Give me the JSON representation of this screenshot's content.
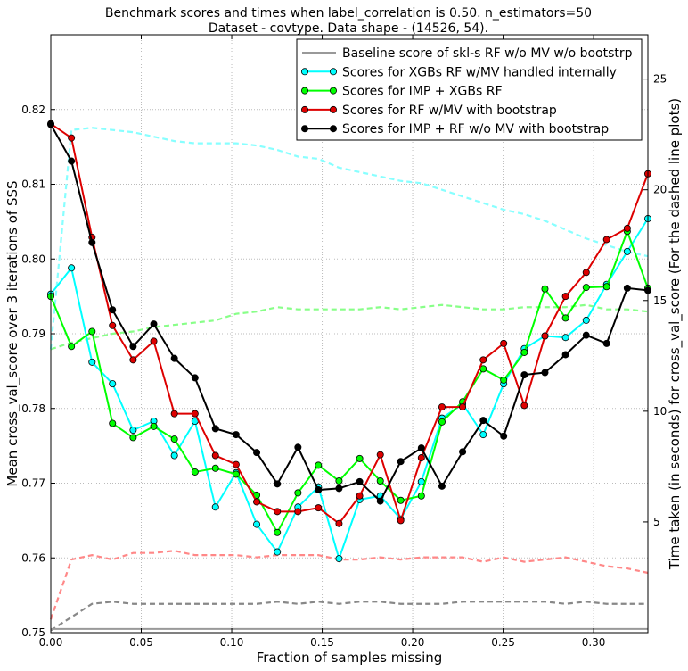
{
  "chart_data": {
    "type": "line",
    "title": "Benchmark scores and times when label_correlation is 0.50. n_estimators=50",
    "subtitle": "Dataset - covtype. Data shape - (14526, 54).",
    "xlabel": "Fraction of samples missing",
    "ylabel": "Mean cross_val_score over 3 iterations of SSS",
    "y2label": "Time taken (in seconds) for cross_val_score (For the dashed line plots)",
    "xlim": [
      0,
      0.33
    ],
    "ylim": [
      0.75,
      0.83
    ],
    "y2lim": [
      0,
      27
    ],
    "x_ticks": [
      "0.00",
      "0.05",
      "0.10",
      "0.15",
      "0.20",
      "0.25",
      "0.30"
    ],
    "y_ticks": [
      "0.75",
      "0.76",
      "0.77",
      "0.78",
      "0.79",
      "0.80",
      "0.81",
      "0.82"
    ],
    "y2_ticks": [
      "5",
      "10",
      "15",
      "20",
      "25"
    ],
    "grid": true,
    "legend_position": "top-right",
    "x": [
      0.0,
      0.0114,
      0.0228,
      0.0341,
      0.0455,
      0.0569,
      0.0683,
      0.0797,
      0.091,
      0.1024,
      0.1138,
      0.1252,
      0.1366,
      0.1479,
      0.1593,
      0.1707,
      0.1821,
      0.1934,
      0.2048,
      0.2162,
      0.2276,
      0.239,
      0.2503,
      0.2617,
      0.2731,
      0.2845,
      0.2959,
      0.3072,
      0.3186,
      0.33
    ],
    "series": [
      {
        "name": "Baseline score of skl-s RF w/o MV w/o bootstrp",
        "color": "#999999",
        "marker": "none",
        "values": [
          0.7505,
          0.7505,
          0.7505,
          0.7505,
          0.7505,
          0.7505,
          0.7505,
          0.7505,
          0.7505,
          0.7505,
          0.7505,
          0.7505,
          0.7505,
          0.7505,
          0.7505,
          0.7505,
          0.7505,
          0.7505,
          0.7505,
          0.7505,
          0.7505,
          0.7505,
          0.7505,
          0.7505,
          0.7505,
          0.7505,
          0.7505,
          0.7505,
          0.7505,
          0.7505
        ]
      },
      {
        "name": "Scores for XGBs RF w/MV handled internally",
        "color": "#00ffff",
        "marker": "circle",
        "values": [
          0.7953,
          0.7988,
          0.7862,
          0.7833,
          0.7771,
          0.7783,
          0.7737,
          0.7783,
          0.7668,
          0.7714,
          0.7645,
          0.7608,
          0.7668,
          0.7695,
          0.7599,
          0.7678,
          0.7683,
          0.7652,
          0.7702,
          0.7787,
          0.7806,
          0.7765,
          0.7833,
          0.788,
          0.7897,
          0.7895,
          0.7918,
          0.7966,
          0.801,
          0.8054
        ]
      },
      {
        "name": "Scores for IMP + XGBs RF",
        "color": "#00ff00",
        "marker": "circle",
        "values": [
          0.795,
          0.7883,
          0.7903,
          0.778,
          0.7761,
          0.7776,
          0.7759,
          0.7715,
          0.772,
          0.7712,
          0.7684,
          0.7634,
          0.7687,
          0.7724,
          0.7703,
          0.7733,
          0.7703,
          0.7677,
          0.7683,
          0.7782,
          0.7809,
          0.7853,
          0.7838,
          0.7875,
          0.796,
          0.7921,
          0.7962,
          0.7963,
          0.8037,
          0.7961
        ]
      },
      {
        "name": "Scores for RF w/MV with bootstrap",
        "color": "#dd0000",
        "marker": "circle",
        "values": [
          0.8181,
          0.8162,
          0.8029,
          0.7911,
          0.7865,
          0.789,
          0.7793,
          0.7793,
          0.7737,
          0.7725,
          0.7675,
          0.7662,
          0.7662,
          0.7667,
          0.7646,
          0.7683,
          0.7738,
          0.765,
          0.7734,
          0.7802,
          0.7802,
          0.7865,
          0.7887,
          0.7804,
          0.7897,
          0.795,
          0.7982,
          0.8026,
          0.8041,
          0.8114
        ]
      },
      {
        "name": "Scores for IMP + RF w/o MV with bootstrap",
        "color": "#000000",
        "marker": "circle",
        "values": [
          0.818,
          0.8131,
          0.8022,
          0.7932,
          0.7883,
          0.7913,
          0.7867,
          0.7841,
          0.7773,
          0.7765,
          0.7741,
          0.7699,
          0.7748,
          0.7691,
          0.7693,
          0.7702,
          0.7676,
          0.7729,
          0.7747,
          0.7696,
          0.7742,
          0.7784,
          0.7763,
          0.7845,
          0.7848,
          0.7872,
          0.7898,
          0.7887,
          0.7961,
          0.7958
        ]
      }
    ],
    "time_series": [
      {
        "color": "#888888",
        "values": [
          0.1,
          0.7,
          1.3,
          1.4,
          1.3,
          1.3,
          1.3,
          1.3,
          1.3,
          1.3,
          1.3,
          1.4,
          1.3,
          1.4,
          1.3,
          1.4,
          1.4,
          1.3,
          1.3,
          1.3,
          1.4,
          1.4,
          1.4,
          1.4,
          1.4,
          1.3,
          1.4,
          1.3,
          1.3,
          1.3
        ]
      },
      {
        "color": "#ff8888",
        "values": [
          0.6,
          3.3,
          3.5,
          3.3,
          3.6,
          3.6,
          3.7,
          3.5,
          3.5,
          3.5,
          3.4,
          3.5,
          3.5,
          3.5,
          3.3,
          3.3,
          3.4,
          3.3,
          3.4,
          3.4,
          3.4,
          3.2,
          3.4,
          3.2,
          3.3,
          3.4,
          3.2,
          3.0,
          2.9,
          2.7
        ]
      },
      {
        "color": "#88ff88",
        "values": [
          12.8,
          13.1,
          13.3,
          13.5,
          13.6,
          13.8,
          13.9,
          14.0,
          14.1,
          14.4,
          14.5,
          14.7,
          14.6,
          14.6,
          14.6,
          14.6,
          14.7,
          14.6,
          14.7,
          14.8,
          14.7,
          14.6,
          14.6,
          14.7,
          14.7,
          14.7,
          14.8,
          14.6,
          14.6,
          14.5
        ]
      },
      {
        "color": "#88ffff",
        "values": [
          12.8,
          22.7,
          22.8,
          22.7,
          22.6,
          22.4,
          22.2,
          22.1,
          22.1,
          22.1,
          22.0,
          21.8,
          21.5,
          21.4,
          21.0,
          20.8,
          20.6,
          20.4,
          20.3,
          20.0,
          19.7,
          19.4,
          19.1,
          18.9,
          18.6,
          18.2,
          17.8,
          17.5,
          17.2,
          17.0
        ]
      }
    ]
  }
}
